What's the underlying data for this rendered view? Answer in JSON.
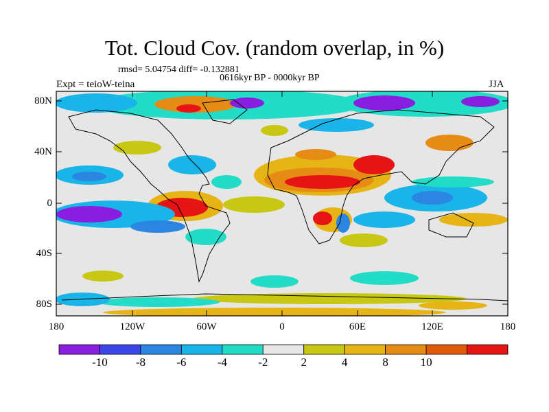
{
  "title": "Tot. Cloud Cov. (random overlap, in %)",
  "stats": "rmsd= 5.04754 diff= -0.132881",
  "period": "0616kyr BP - 0000kyr BP",
  "experiment": "Expt = teioW-teina",
  "season": "JJA",
  "lat_labels": [
    "80N",
    "40N",
    "0",
    "40S",
    "80S"
  ],
  "lon_labels": [
    "180",
    "120W",
    "60W",
    "0",
    "60E",
    "120E",
    "180"
  ],
  "colorbar": {
    "labels": [
      "-10",
      "-8",
      "-6",
      "-4",
      "-2",
      "2",
      "4",
      "8",
      "10"
    ],
    "colors": [
      "#8a1ee0",
      "#3c46e6",
      "#2a86e0",
      "#19b4e8",
      "#22dcc8",
      "#e6e6e6",
      "#c8c814",
      "#e6b414",
      "#e68c14",
      "#e05a0a",
      "#e61414"
    ]
  },
  "colors": {
    "background_field": "#e6e6e6",
    "coastline": "#000000"
  }
}
